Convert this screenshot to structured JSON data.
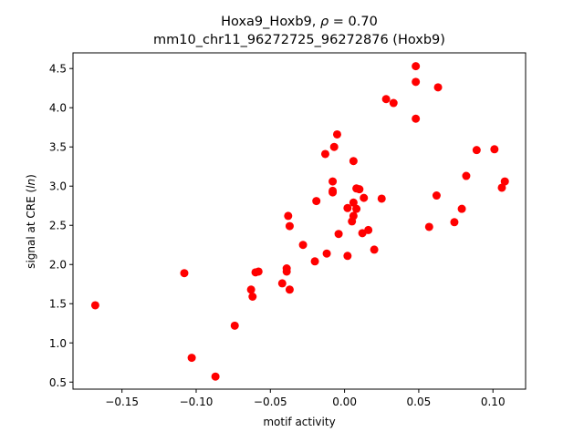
{
  "chart_data": {
    "type": "scatter",
    "title_line1_prefix": "Hoxa9_Hoxb9, ",
    "title_line1_rho": "ρ",
    "title_line1_suffix": " = 0.70",
    "title_line2": "mm10_chr11_96272725_96272876 (Hoxb9)",
    "xlabel": "motif activity",
    "ylabel_prefix": "signal at CRE (",
    "ylabel_italic": "ln",
    "ylabel_suffix": ")",
    "xlim": [
      -0.183,
      0.122
    ],
    "ylim": [
      0.41,
      4.7
    ],
    "xticks": [
      -0.15,
      -0.1,
      -0.05,
      0.0,
      0.05,
      0.1
    ],
    "xtick_labels": [
      "−0.15",
      "−0.10",
      "−0.05",
      "0.00",
      "0.05",
      "0.10"
    ],
    "yticks": [
      0.5,
      1.0,
      1.5,
      2.0,
      2.5,
      3.0,
      3.5,
      4.0,
      4.5
    ],
    "ytick_labels": [
      "0.5",
      "1.0",
      "1.5",
      "2.0",
      "2.5",
      "3.0",
      "3.5",
      "4.0",
      "4.5"
    ],
    "marker_color": "#ff0000",
    "grid": false,
    "points": [
      {
        "x": -0.168,
        "y": 1.48
      },
      {
        "x": -0.108,
        "y": 1.89
      },
      {
        "x": -0.103,
        "y": 0.81
      },
      {
        "x": -0.087,
        "y": 0.57
      },
      {
        "x": -0.074,
        "y": 1.22
      },
      {
        "x": -0.063,
        "y": 1.68
      },
      {
        "x": -0.062,
        "y": 1.59
      },
      {
        "x": -0.06,
        "y": 1.9
      },
      {
        "x": -0.058,
        "y": 1.91
      },
      {
        "x": -0.042,
        "y": 1.76
      },
      {
        "x": -0.039,
        "y": 1.95
      },
      {
        "x": -0.039,
        "y": 1.91
      },
      {
        "x": -0.038,
        "y": 2.62
      },
      {
        "x": -0.037,
        "y": 1.68
      },
      {
        "x": -0.037,
        "y": 2.49
      },
      {
        "x": -0.028,
        "y": 2.25
      },
      {
        "x": -0.02,
        "y": 2.04
      },
      {
        "x": -0.019,
        "y": 2.81
      },
      {
        "x": -0.013,
        "y": 3.41
      },
      {
        "x": -0.012,
        "y": 2.14
      },
      {
        "x": -0.008,
        "y": 3.06
      },
      {
        "x": -0.008,
        "y": 2.94
      },
      {
        "x": -0.008,
        "y": 2.92
      },
      {
        "x": -0.007,
        "y": 3.5
      },
      {
        "x": -0.005,
        "y": 3.66
      },
      {
        "x": -0.004,
        "y": 2.39
      },
      {
        "x": 0.002,
        "y": 2.11
      },
      {
        "x": 0.002,
        "y": 2.72
      },
      {
        "x": 0.005,
        "y": 2.55
      },
      {
        "x": 0.006,
        "y": 2.62
      },
      {
        "x": 0.006,
        "y": 3.32
      },
      {
        "x": 0.006,
        "y": 2.79
      },
      {
        "x": 0.008,
        "y": 2.71
      },
      {
        "x": 0.008,
        "y": 2.97
      },
      {
        "x": 0.01,
        "y": 2.96
      },
      {
        "x": 0.012,
        "y": 2.4
      },
      {
        "x": 0.013,
        "y": 2.85
      },
      {
        "x": 0.016,
        "y": 2.44
      },
      {
        "x": 0.02,
        "y": 2.19
      },
      {
        "x": 0.025,
        "y": 2.84
      },
      {
        "x": 0.028,
        "y": 4.11
      },
      {
        "x": 0.033,
        "y": 4.06
      },
      {
        "x": 0.048,
        "y": 4.53
      },
      {
        "x": 0.048,
        "y": 4.33
      },
      {
        "x": 0.048,
        "y": 3.86
      },
      {
        "x": 0.057,
        "y": 2.48
      },
      {
        "x": 0.062,
        "y": 2.88
      },
      {
        "x": 0.063,
        "y": 4.26
      },
      {
        "x": 0.074,
        "y": 2.54
      },
      {
        "x": 0.079,
        "y": 2.71
      },
      {
        "x": 0.082,
        "y": 3.13
      },
      {
        "x": 0.089,
        "y": 3.46
      },
      {
        "x": 0.101,
        "y": 3.47
      },
      {
        "x": 0.106,
        "y": 2.98
      },
      {
        "x": 0.108,
        "y": 3.06
      }
    ]
  }
}
